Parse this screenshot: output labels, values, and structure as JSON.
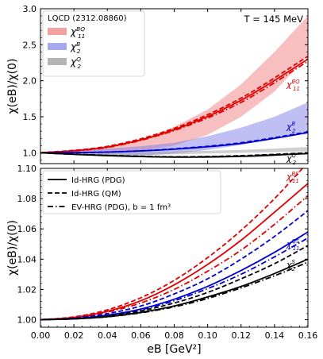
{
  "chart_data": [
    {
      "type": "line",
      "panel": "top",
      "ylabel": "χ(eB)/χ(0)",
      "ylim": [
        0.85,
        3.0
      ],
      "xlim": [
        0.0,
        0.16
      ],
      "yticks": [
        "1.0",
        "1.5",
        "2.0",
        "2.5",
        "3.0"
      ],
      "annotation_top_right": "T = 145 MeV",
      "legend": {
        "title": "LQCD (2312.08860)",
        "placement": "top-left",
        "entries": [
          {
            "label": "χ11BQ",
            "color": "#f4a0a0"
          },
          {
            "label": "χ2B",
            "color": "#a8a8f0"
          },
          {
            "label": "χ2Q",
            "color": "#b4b4b4"
          }
        ]
      },
      "curve_labels": [
        {
          "label": "χ11BQ",
          "color": "#e00000"
        },
        {
          "label": "χ2B",
          "color": "#0000d0"
        },
        {
          "label": "χ2Q",
          "color": "#000000"
        }
      ],
      "bands": [
        {
          "name": "χ11BQ",
          "color": "#f08080",
          "x": [
            0.0,
            0.02,
            0.04,
            0.06,
            0.08,
            0.1,
            0.12,
            0.14,
            0.16
          ],
          "lower": [
            0.99,
            0.99,
            1.0,
            1.03,
            1.1,
            1.25,
            1.5,
            1.85,
            2.35
          ],
          "upper": [
            1.0,
            1.04,
            1.09,
            1.18,
            1.36,
            1.6,
            1.95,
            2.4,
            2.9
          ]
        },
        {
          "name": "χ2B",
          "color": "#8080e8",
          "x": [
            0.0,
            0.02,
            0.04,
            0.06,
            0.08,
            0.1,
            0.12,
            0.14,
            0.16
          ],
          "lower": [
            0.99,
            0.97,
            0.96,
            0.96,
            0.99,
            1.04,
            1.11,
            1.2,
            1.3
          ],
          "upper": [
            1.0,
            1.03,
            1.06,
            1.09,
            1.14,
            1.23,
            1.35,
            1.5,
            1.7
          ]
        },
        {
          "name": "χ2Q",
          "color": "#a0a0a0",
          "x": [
            0.0,
            0.02,
            0.04,
            0.06,
            0.08,
            0.1,
            0.12,
            0.14,
            0.16
          ],
          "lower": [
            0.99,
            0.98,
            0.97,
            0.97,
            0.98,
            0.99,
            1.0,
            1.01,
            1.02
          ],
          "upper": [
            1.0,
            1.0,
            1.0,
            1.01,
            1.02,
            1.03,
            1.04,
            1.06,
            1.08
          ]
        }
      ],
      "series": [
        {
          "label_group": "χ11BQ",
          "style": "solid",
          "color": "#e00000",
          "x": [
            0.0,
            0.04,
            0.08,
            0.12,
            0.16
          ],
          "y": [
            1.0,
            1.08,
            1.32,
            1.73,
            2.3
          ]
        },
        {
          "label_group": "χ11BQ",
          "style": "dashed",
          "color": "#e00000",
          "x": [
            0.0,
            0.04,
            0.08,
            0.12,
            0.16
          ],
          "y": [
            1.0,
            1.09,
            1.34,
            1.76,
            2.34
          ]
        },
        {
          "label_group": "χ11BQ",
          "style": "dashdot",
          "color": "#e00000",
          "x": [
            0.0,
            0.04,
            0.08,
            0.12,
            0.16
          ],
          "y": [
            1.0,
            1.075,
            1.31,
            1.7,
            2.27
          ]
        },
        {
          "label_group": "χ2B",
          "style": "solid",
          "color": "#0000d0",
          "x": [
            0.0,
            0.04,
            0.08,
            0.12,
            0.16
          ],
          "y": [
            1.0,
            1.01,
            1.05,
            1.13,
            1.28
          ]
        },
        {
          "label_group": "χ2B",
          "style": "dashed",
          "color": "#0000d0",
          "x": [
            0.0,
            0.04,
            0.08,
            0.12,
            0.16
          ],
          "y": [
            1.0,
            1.01,
            1.055,
            1.14,
            1.29
          ]
        },
        {
          "label_group": "χ2Q",
          "style": "solid",
          "color": "#000000",
          "x": [
            0.0,
            0.04,
            0.08,
            0.12,
            0.16
          ],
          "y": [
            1.0,
            0.96,
            0.94,
            0.95,
            0.99
          ]
        },
        {
          "label_group": "χ2Q",
          "style": "dashed",
          "color": "#000000",
          "x": [
            0.0,
            0.04,
            0.08,
            0.12,
            0.16
          ],
          "y": [
            1.0,
            0.965,
            0.945,
            0.96,
            1.0
          ]
        },
        {
          "label_group": "χ2Q",
          "style": "dashdot",
          "color": "#000000",
          "x": [
            0.0,
            0.04,
            0.08,
            0.12,
            0.16
          ],
          "y": [
            1.0,
            0.962,
            0.943,
            0.955,
            0.995
          ]
        }
      ]
    },
    {
      "type": "line",
      "panel": "bottom",
      "ylabel": "χ(eB)/χ(0)",
      "xlabel": "eB [GeV²]",
      "xlim": [
        0.0,
        0.16
      ],
      "ylim": [
        0.995,
        1.1
      ],
      "xticks": [
        "0.00",
        "0.02",
        "0.04",
        "0.06",
        "0.08",
        "0.10",
        "0.12",
        "0.14",
        "0.16"
      ],
      "yticks": [
        "1.00",
        "1.02",
        "1.04",
        "1.06",
        "1.08",
        "1.10"
      ],
      "legend": {
        "placement": "top-left",
        "entries": [
          {
            "label": "Id-HRG (PDG)",
            "style": "solid"
          },
          {
            "label": "Id-HRG (QM)",
            "style": "dashed"
          },
          {
            "label": "EV-HRG (PDG), b = 1 fm³",
            "style": "dashdot"
          }
        ]
      },
      "curve_labels": [
        {
          "label": "χ11BS",
          "color": "#e00000"
        },
        {
          "label": "χ11QS",
          "color": "#0000d0"
        },
        {
          "label": "χ2S",
          "color": "#000000"
        }
      ],
      "series": [
        {
          "label_group": "χ11BS",
          "style": "solid",
          "color": "#e00000",
          "x": [
            0.0,
            0.02,
            0.04,
            0.06,
            0.08,
            0.1,
            0.12,
            0.14,
            0.16
          ],
          "y": [
            1.0,
            1.0015,
            1.0055,
            1.0125,
            1.023,
            1.0365,
            1.0525,
            1.071,
            1.09
          ]
        },
        {
          "label_group": "χ11BS",
          "style": "dashed",
          "color": "#e00000",
          "x": [
            0.0,
            0.02,
            0.04,
            0.06,
            0.08,
            0.1,
            0.12,
            0.14,
            0.16
          ],
          "y": [
            1.0,
            1.0018,
            1.0065,
            1.0145,
            1.026,
            1.041,
            1.059,
            1.08,
            1.104
          ]
        },
        {
          "label_group": "χ11BS",
          "style": "dashdot",
          "color": "#e00000",
          "x": [
            0.0,
            0.02,
            0.04,
            0.06,
            0.08,
            0.1,
            0.12,
            0.14,
            0.16
          ],
          "y": [
            1.0,
            1.0013,
            1.005,
            1.011,
            1.02,
            1.032,
            1.046,
            1.063,
            1.082
          ]
        },
        {
          "label_group": "χ11QS",
          "style": "solid",
          "color": "#0000d0",
          "x": [
            0.0,
            0.02,
            0.04,
            0.06,
            0.08,
            0.1,
            0.12,
            0.14,
            0.16
          ],
          "y": [
            1.0,
            1.0008,
            1.003,
            1.007,
            1.0135,
            1.022,
            1.0325,
            1.0445,
            1.058
          ]
        },
        {
          "label_group": "χ11QS",
          "style": "dashed",
          "color": "#0000d0",
          "x": [
            0.0,
            0.02,
            0.04,
            0.06,
            0.08,
            0.1,
            0.12,
            0.14,
            0.16
          ],
          "y": [
            1.0,
            1.001,
            1.004,
            1.009,
            1.017,
            1.027,
            1.04,
            1.055,
            1.072
          ]
        },
        {
          "label_group": "χ11QS",
          "style": "dashdot",
          "color": "#0000d0",
          "x": [
            0.0,
            0.02,
            0.04,
            0.06,
            0.08,
            0.1,
            0.12,
            0.14,
            0.16
          ],
          "y": [
            1.0,
            1.0008,
            1.0028,
            1.0065,
            1.0125,
            1.0205,
            1.03,
            1.0415,
            1.054
          ]
        },
        {
          "label_group": "χ2S",
          "style": "solid",
          "color": "#000000",
          "x": [
            0.0,
            0.02,
            0.04,
            0.06,
            0.08,
            0.1,
            0.12,
            0.14,
            0.16
          ],
          "y": [
            1.0,
            1.0005,
            1.002,
            1.0048,
            1.009,
            1.015,
            1.022,
            1.0305,
            1.04
          ]
        },
        {
          "label_group": "χ2S",
          "style": "dashed",
          "color": "#000000",
          "x": [
            0.0,
            0.02,
            0.04,
            0.06,
            0.08,
            0.1,
            0.12,
            0.14,
            0.16
          ],
          "y": [
            1.0,
            1.0006,
            1.0025,
            1.0058,
            1.011,
            1.018,
            1.027,
            1.037,
            1.049
          ]
        },
        {
          "label_group": "χ2S",
          "style": "dashdot",
          "color": "#000000",
          "x": [
            0.0,
            0.02,
            0.04,
            0.06,
            0.08,
            0.1,
            0.12,
            0.14,
            0.16
          ],
          "y": [
            1.0,
            1.0005,
            1.0019,
            1.0045,
            1.0085,
            1.014,
            1.021,
            1.029,
            1.038
          ]
        }
      ]
    }
  ]
}
